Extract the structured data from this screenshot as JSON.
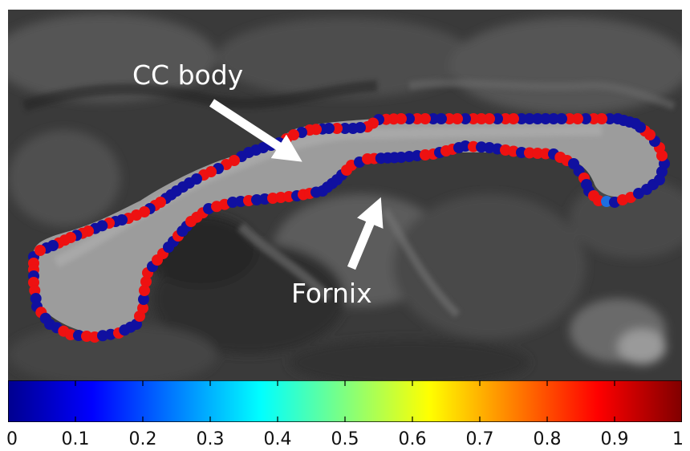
{
  "annotations": {
    "cc_body_label": "CC body",
    "fornix_label": "Fornix"
  },
  "colorbar": {
    "colormap": "jet",
    "min": 0,
    "max": 1,
    "ticks": [
      "0",
      "0.1",
      "0.2",
      "0.3",
      "0.4",
      "0.5",
      "0.6",
      "0.7",
      "0.8",
      "0.9",
      "1"
    ]
  },
  "colors": {
    "contour_low": "#1010a0",
    "contour_high": "#ee1111",
    "annotation": "#ffffff"
  }
}
